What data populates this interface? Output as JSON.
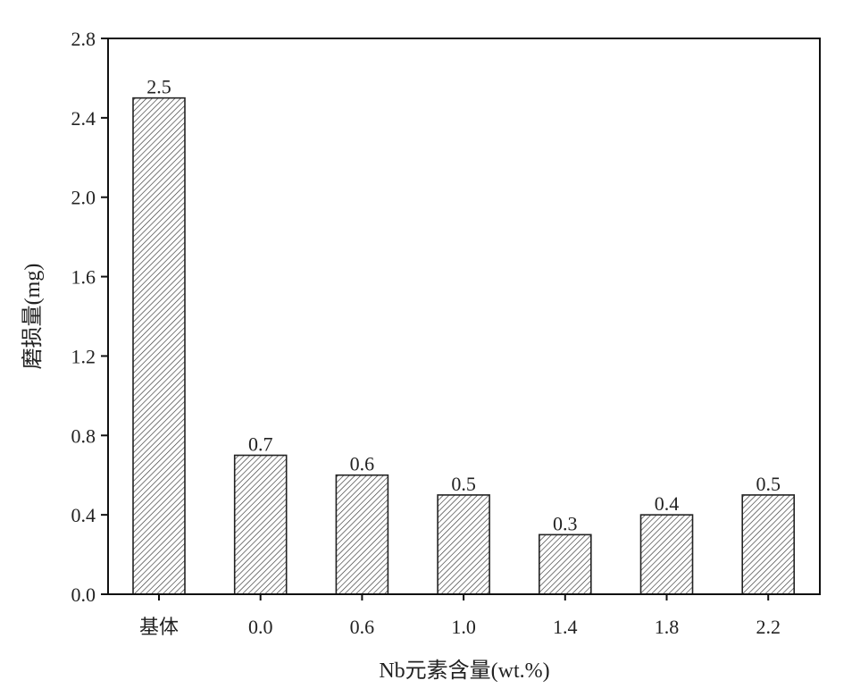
{
  "chart_data": {
    "type": "bar",
    "title": "",
    "xlabel": "Nb元素含量(wt.%)",
    "ylabel": "磨损量(mg)",
    "categories": [
      "基体",
      "0.0",
      "0.6",
      "1.0",
      "1.4",
      "1.8",
      "2.2"
    ],
    "values": [
      2.5,
      0.7,
      0.6,
      0.5,
      0.3,
      0.4,
      0.5
    ],
    "data_labels": [
      "2.5",
      "0.7",
      "0.6",
      "0.5",
      "0.3",
      "0.4",
      "0.5"
    ],
    "ylim": [
      0,
      2.8
    ],
    "yticks": [
      "0.0",
      "0.4",
      "0.8",
      "1.2",
      "1.6",
      "2.0",
      "2.4",
      "2.8"
    ],
    "grid": false,
    "bar_fill": "diagonal-hatch",
    "colors": {
      "bar_edge": "#222222",
      "hatch": "#333333",
      "axis": "#111111"
    }
  }
}
